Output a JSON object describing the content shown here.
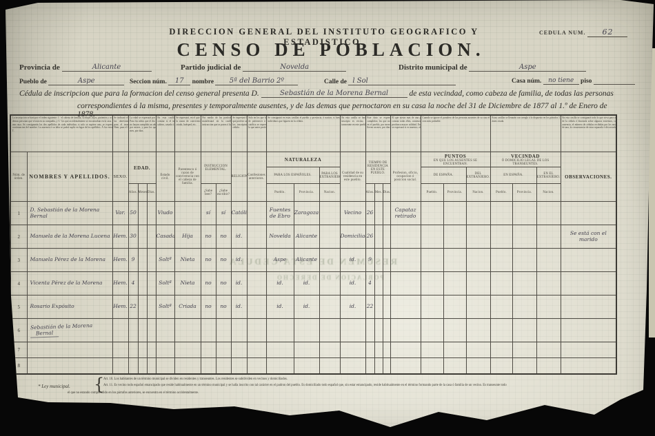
{
  "header": {
    "agency": "DIRECCION GENERAL DEL INSTITUTO GEOGRAFICO Y ESTADISTICO.",
    "cedula_label": "CEDULA NUM.",
    "cedula_value": "62",
    "title": "CENSO DE POBLACION."
  },
  "fields": {
    "provincia_label": "Provincia de",
    "provincia_value": "Alicante",
    "partido_label": "Partido judicial de",
    "partido_value": "Novelda",
    "distrito_label": "Distrito municipal de",
    "distrito_value": "Aspe",
    "pueblo_label": "Pueblo de",
    "pueblo_value": "Aspe",
    "seccion_label": "Seccion núm.",
    "seccion_value": "17",
    "nombre_label": "nombre",
    "nombre_value": "5ª del Barrio 2º",
    "calle_label": "Calle de",
    "calle_value": "l Sol",
    "casa_label": "Casa núm.",
    "casa_value": "no tiene",
    "piso_label": "piso"
  },
  "intro": {
    "line1_pre": "Cédula de inscripcion que para la formacion del censo general presenta D.",
    "line1_name": "Sebastián de la Morena Bernal",
    "line1_post": "de esta vecindad, como cabeza de familia, de todas las personas",
    "line2": "correspondientes á la misma, presentes y temporalmente ausentes, y de las demas que pernoctaron en su casa la noche del 31 de Diciembre de 1877 al 1.º de Enero de 1878."
  },
  "instructions": {
    "nombres": "La inscripcion se hará por el órden siguiente: 1.º el cabeza de familia, su mujer, hijos, parientes y criados; 2.º los agregados, convecinos, dependientes, criados y demas personas que vivian en su compañía, y 3.º los que accidentalmente se encontraban en la casa. Cada una de estas casillas se cerrará á su final por medio de una raya. Se consignarán los dos apellidos de cada individuo; si solo se supiese uno, se expresará este, y si se ignorasen ambos, se marcará una cruz á continuacion del nombre. La ausencia ó su falta se podrá suplir en lugar de los apellidos. Á los extranjeros se les señalará con una E y á los transeuntes con una T.",
    "sexo": "Se indicará el sexo con las abreviaturas Var. para el masculino y Hem. para el femenino.",
    "edad": "La edad se expresará por años cumplidos. Para los niños que el dia de la inscripcion no hayan cumplido un año se hará constar por meses, y para los que no llegan á un mes, por dias.",
    "estado": "En esta casilla se hará constar si el individuo es soltero, casado ó viudo.",
    "parentesco": "Se expresará, en el que no sea pariente, la razon de convivencia, como amo, criado, huésped, etc.",
    "instruccion": "Por medio de las partículas SÍ ó NO se manifestará en la casilla respectiva la instruccion que se posea ó la carencia de ella.",
    "religion": "Se expresará la religion que profese cada uno de los inscriptos en esta cédula.",
    "confes": "Solo en los que hayan dejado de pertenecer á la religion católica se expresará ademas la que antes profesaban.",
    "naturaleza": "Se consignará en estas casillas el pueblo y provincia, ó nacion, si fuese extranjero, en que nació cada uno de los individuos que figuren en la cédula.",
    "cualidad": "En esta casilla se hará constar si el inscripto es vecino, domiciliado ó transeunte en este pueblo.",
    "tiempo": "Este dato se expresará por años cumplidos; los que no lleven un año en el pueblo, por meses, y los que no lleven un mes, por dias.",
    "profesion": "El que ejerza mas de una profesion, las hará constar todas ellas, comenzando por la que le produzca mayor utilidad. En las artes y oficios se expresará si es maestro, oficial ó aprendiz.",
    "puntos": "Cuando se ignore el paradero de las personas ausentes de su casa el dia de la inscripcion, se pondrá el que se crea más probable.",
    "vecindad": "Estas casillas se llenarán con arreglo á lo dispuesto en los párrafos 1.º y 2.º del artículo 11 de la Ley municipal ántes citada.",
    "observaciones": "En esta casilla se consignará todo lo que sirva para aclarar cualquier concepto dudoso de la cédula ó ilustrarla sobre algunos extremos, como por ejemplo: la fecha de la ausencia, el número de cédulas recibidas por los ausentes y viajeros, cuando sea más de una, la circunstancia de estar separado ó divorciado el cabeza de familia, etc., etc."
  },
  "columns": {
    "num": "Núm. de órden.",
    "nombres": "NOMBRES Y APELLIDOS.",
    "sexo": "SEXO.",
    "edad": "EDAD.",
    "anos": "Años.",
    "meses": "Meses.",
    "dias": "Dias.",
    "estado": "Estado civil.",
    "parentesco": "Parentesco ó razon de convivencia con el cabeza de familia.",
    "instruccion": "INSTRUCCION ELEMENTAL.",
    "leer": "¿Sabe leer?",
    "escribir": "¿Sabe escribir?",
    "religion": "RELIGION.",
    "confes": "Confesiones anteriores.",
    "naturaleza": "NATURALEZA",
    "esp": "PARA LOS ESPAÑOLES.",
    "ext": "PARA LOS EXTRANJEROS.",
    "pueblo": "Pueblo.",
    "provincia": "Provincia.",
    "nacion": "Nacion.",
    "cualidad": "Cualidad de su residencia en este pueblo.",
    "tiempo": "TIEMPO DE RESIDENCIA EN ESTE PUEBLO.",
    "t_anos": "Años.",
    "t_meses": "Mes.",
    "t_dias": "Dias.",
    "profesion": "Profesion, oficio, ocupacion ó posicion social.",
    "puntos": "PUNTOS",
    "puntos_sub": "EN QUE LOS AUSENTES SE ENCUENTRAN.",
    "de_espana": "DE ESPAÑA.",
    "del_ext": "DEL EXTRANJERO.",
    "vecindad": "VECINDAD",
    "vecindad_sub": "Ó DOMICILIO LEGAL DE LOS TRANSEUNTES.",
    "en_espana": "EN ESPAÑA.",
    "en_ext": "EN EL EXTRANJERO.",
    "observaciones": "OBSERVACIONES."
  },
  "table": {
    "rows": [
      {
        "num": "1",
        "name": "D. Sebastián de la Morena Bernal",
        "sexo": "Var.",
        "anos": "50",
        "estado": "Viudo",
        "leer": "sí",
        "escribir": "sí",
        "religion": "Católico",
        "nat_pueblo": "Fuentes de Ebro",
        "nat_prov": "Zaragoza",
        "cualidad": "Vecino",
        "t_anos": "26",
        "profesion": "Capataz retirado"
      },
      {
        "num": "2",
        "name": "Manuela de la Morena Lucena",
        "sexo": "Hem.",
        "anos": "30",
        "estado": "Casada",
        "parentesco": "Hija",
        "leer": "no",
        "escribir": "no",
        "religion": "id.",
        "nat_pueblo": "Novelda",
        "nat_prov": "Alicante",
        "cualidad": "Domiciliada",
        "t_anos": "26",
        "obs": "Se está con el marido"
      },
      {
        "num": "3",
        "name": "Manuela Pérez de la Morena",
        "sexo": "Hem.",
        "anos": "9",
        "estado": "Soltª",
        "parentesco": "Nieta",
        "leer": "no",
        "escribir": "no",
        "religion": "id.",
        "nat_pueblo": "Aspe",
        "nat_prov": "Alicante",
        "cualidad": "id.",
        "t_anos": "9"
      },
      {
        "num": "4",
        "name": "Vicenta Pérez de la Morena",
        "sexo": "Hem.",
        "anos": "4",
        "estado": "Soltª",
        "parentesco": "Nieta",
        "leer": "no",
        "escribir": "no",
        "religion": "id.",
        "nat_pueblo": "id.",
        "nat_prov": "id.",
        "cualidad": "id.",
        "t_anos": "4"
      },
      {
        "num": "5",
        "name": "Rosario Expósito",
        "sexo": "Hem.",
        "anos": "22",
        "estado": "Soltª",
        "parentesco": "Criada",
        "leer": "no",
        "escribir": "no",
        "religion": "id.",
        "nat_pueblo": "id.",
        "nat_prov": "id.",
        "cualidad": "id.",
        "t_anos": "22"
      },
      {
        "num": "6",
        "name": "Sebastián de la Morena",
        "name2": "Bernal"
      },
      {
        "num": "7"
      },
      {
        "num": "8"
      }
    ]
  },
  "bleedthrough": {
    "line1": "RESUMEN DE ESTA CEDULA",
    "line2": "POBLACION DE DERECHO"
  },
  "footnote": {
    "label": "* Ley municipal.",
    "art10": "Art. 10.   Los habitantes de un término municipal se dividen en residentes y transeuntes. Los residentes se subdividen en vecinos y domiciliados.",
    "art11": "Art. 11.   Es vecino todo español emancipado que reside habitualmente en un término municipal y se halla inscrito con tal carácter en el padron del pueblo. Es domiciliado todo español que, sin estar emancipado, reside habitualmente en el término formando parte de la casa ó familia de un vecino. Es transeunte todo",
    "cont": "el que no estando comprendido en los párrafos anteriores, se encuentra en el término accidentalmente."
  }
}
